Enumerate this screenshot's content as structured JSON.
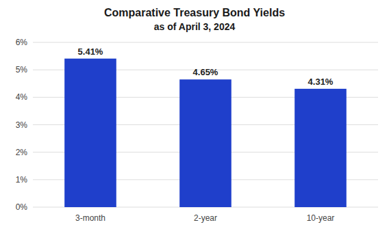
{
  "chart_data": {
    "type": "bar",
    "title": "Comparative Treasury Bond Yields",
    "subtitle": "as of April 3, 2024",
    "categories": [
      "3-month",
      "2-year",
      "10-year"
    ],
    "values": [
      5.41,
      4.65,
      4.31
    ],
    "value_labels": [
      "5.41%",
      "4.65%",
      "4.31%"
    ],
    "data_labels": true,
    "color": "#1f3fcb",
    "ylim": [
      0,
      6
    ],
    "yticks": [
      {
        "value": 0,
        "label": "0%"
      },
      {
        "value": 1,
        "label": "1%"
      },
      {
        "value": 2,
        "label": "2%"
      },
      {
        "value": 3,
        "label": "3%"
      },
      {
        "value": 4,
        "label": "4%"
      },
      {
        "value": 5,
        "label": "5%"
      },
      {
        "value": 6,
        "label": "6%"
      }
    ],
    "grid": true
  }
}
